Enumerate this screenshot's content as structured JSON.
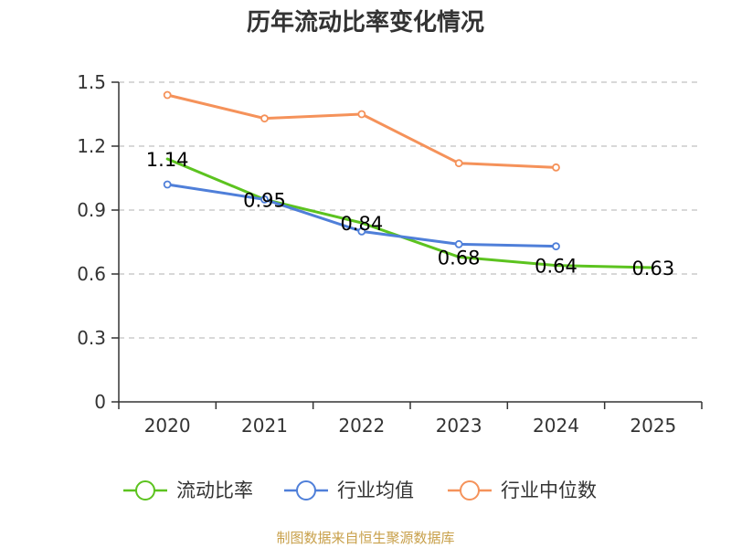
{
  "chart_data": {
    "type": "line",
    "title": "历年流动比率变化情况",
    "categories": [
      "2020",
      "2021",
      "2022",
      "2023",
      "2024",
      "2025"
    ],
    "y_ticks": [
      "0",
      "0.3",
      "0.6",
      "0.9",
      "1.2",
      "1.5"
    ],
    "ylim": [
      0,
      1.5
    ],
    "grid": true,
    "legend_position": "bottom",
    "series": [
      {
        "name": "流动比率",
        "color": "#5cc31f",
        "values": [
          1.14,
          0.95,
          0.84,
          0.68,
          0.64,
          0.63
        ],
        "labels": [
          "1.14",
          "0.95",
          "0.84",
          "0.68",
          "0.64",
          "0.63"
        ],
        "show_markers": false
      },
      {
        "name": "行业均值",
        "color": "#4f7fd9",
        "values": [
          1.02,
          0.95,
          0.8,
          0.74,
          0.73,
          null
        ],
        "show_markers": true
      },
      {
        "name": "行业中位数",
        "color": "#f5925a",
        "values": [
          1.44,
          1.33,
          1.35,
          1.12,
          1.1,
          null
        ],
        "show_markers": true
      }
    ],
    "source": "制图数据来自恒生聚源数据库"
  }
}
